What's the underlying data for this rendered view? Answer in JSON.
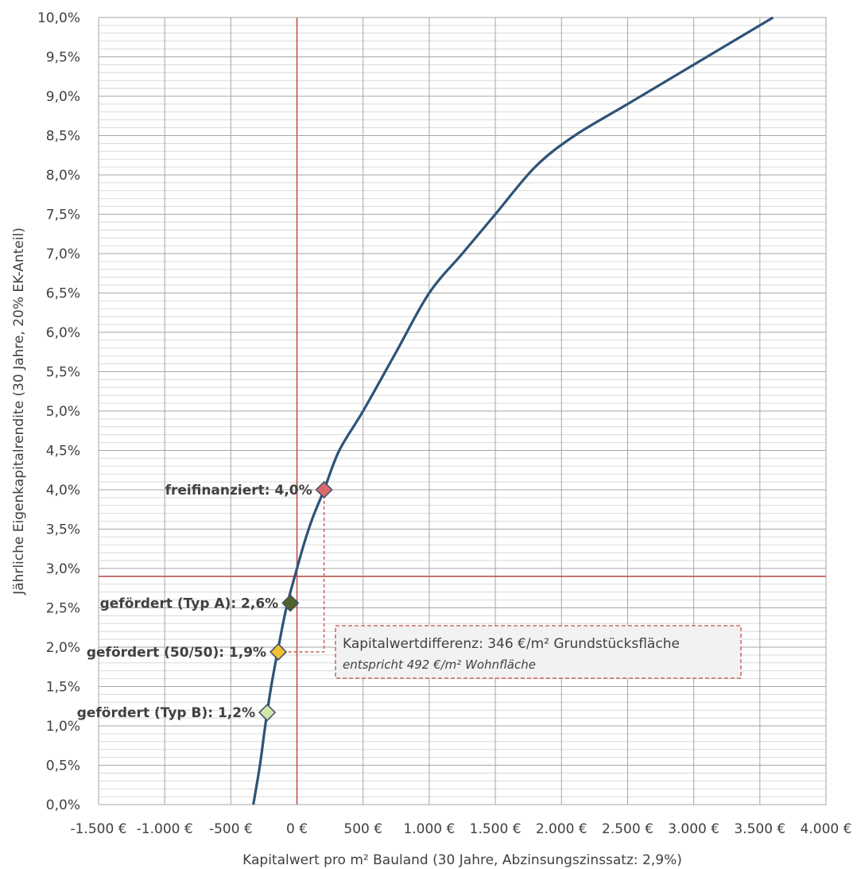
{
  "chart_data": {
    "type": "line",
    "xlabel": "Kapitalwert pro m² Bauland (30 Jahre, Abzinsungszinssatz: 2,9%)",
    "ylabel": "Jährliche Eigenkapitalrendite (30 Jahre, 20% EK-Anteil)",
    "xlim": [
      -1500,
      4000
    ],
    "ylim": [
      0,
      10
    ],
    "x_ticks": [
      -1500,
      -1000,
      -500,
      0,
      500,
      1000,
      1500,
      2000,
      2500,
      3000,
      3500,
      4000
    ],
    "x_tick_labels": [
      "-1.500 €",
      "-1.000 €",
      "-500 €",
      "0 €",
      "500 €",
      "1.000 €",
      "1.500 €",
      "2.000 €",
      "2.500 €",
      "3.000 €",
      "3.500 €",
      "4.000 €"
    ],
    "y_ticks": [
      0,
      0.5,
      1,
      1.5,
      2,
      2.5,
      3,
      3.5,
      4,
      4.5,
      5,
      5.5,
      6,
      6.5,
      7,
      7.5,
      8,
      8.5,
      9,
      9.5,
      10
    ],
    "y_tick_labels": [
      "0,0%",
      "0,5%",
      "1,0%",
      "1,5%",
      "2,0%",
      "2,5%",
      "3,0%",
      "3,5%",
      "4,0%",
      "4,5%",
      "5,0%",
      "5,5%",
      "6,0%",
      "6,5%",
      "7,0%",
      "7,5%",
      "8,0%",
      "8,5%",
      "9,0%",
      "9,5%",
      "10,0%"
    ],
    "minor_y_step": 0.1,
    "grid": true,
    "series": [
      {
        "color": "#2e5378",
        "x": [
          -330,
          -280,
          -240,
          -195,
          -140,
          -80,
          0,
          60,
          120,
          205,
          320,
          500,
          750,
          1000,
          1250,
          1500,
          1800,
          2100,
          2500,
          3000,
          3500,
          3600
        ],
        "y": [
          0,
          0.5,
          1.0,
          1.5,
          2.0,
          2.5,
          3.0,
          3.35,
          3.65,
          4.0,
          4.5,
          5.0,
          5.75,
          6.5,
          7.0,
          7.5,
          8.1,
          8.5,
          8.9,
          9.4,
          9.9,
          10.0
        ]
      }
    ],
    "reference_lines": {
      "vertical_x": 0,
      "horizontal_y": 2.9,
      "color": "#c0504d"
    },
    "points": [
      {
        "label": "freifinanziert: 4,0%",
        "x": 205,
        "y": 4.0,
        "color": "#d9696a"
      },
      {
        "label": "gefördert (Typ A): 2,6%",
        "x": -50,
        "y": 2.56,
        "color": "#4f6228"
      },
      {
        "label": "gefördert (50/50): 1,9%",
        "x": -141,
        "y": 1.94,
        "color": "#f0c030"
      },
      {
        "label": "gefördert (Typ B): 1,2%",
        "x": -225,
        "y": 1.17,
        "color": "#d3e6a6"
      }
    ],
    "annotation": {
      "line1": "Kapitalwertdifferenz: 346 €/m² Grundstücksfläche",
      "line2": "entspricht 492 €/m² Wohnfläche"
    }
  }
}
